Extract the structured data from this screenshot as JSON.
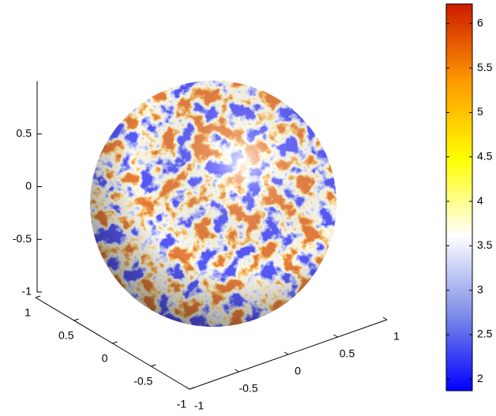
{
  "chart_data": {
    "type": "sphere",
    "xlim": [
      -1,
      1
    ],
    "xticks": [
      -1,
      -0.5,
      0,
      0.5,
      1
    ],
    "ylim": [
      -1,
      1
    ],
    "yticks": [
      -1,
      -0.5,
      0,
      0.5,
      1
    ],
    "zlim": [
      -1,
      1
    ],
    "zticks": [
      -1,
      -0.5,
      0,
      0.5
    ],
    "colorbar": {
      "lim": [
        1.87,
        6.22
      ],
      "ticks": [
        2,
        2.5,
        3,
        3.5,
        4,
        4.5,
        5,
        5.5,
        6
      ],
      "colors": [
        "#0000ff",
        "#7f8fe8",
        "#ffffff",
        "#ffff00",
        "#ff9900",
        "#cc1a00"
      ]
    }
  }
}
